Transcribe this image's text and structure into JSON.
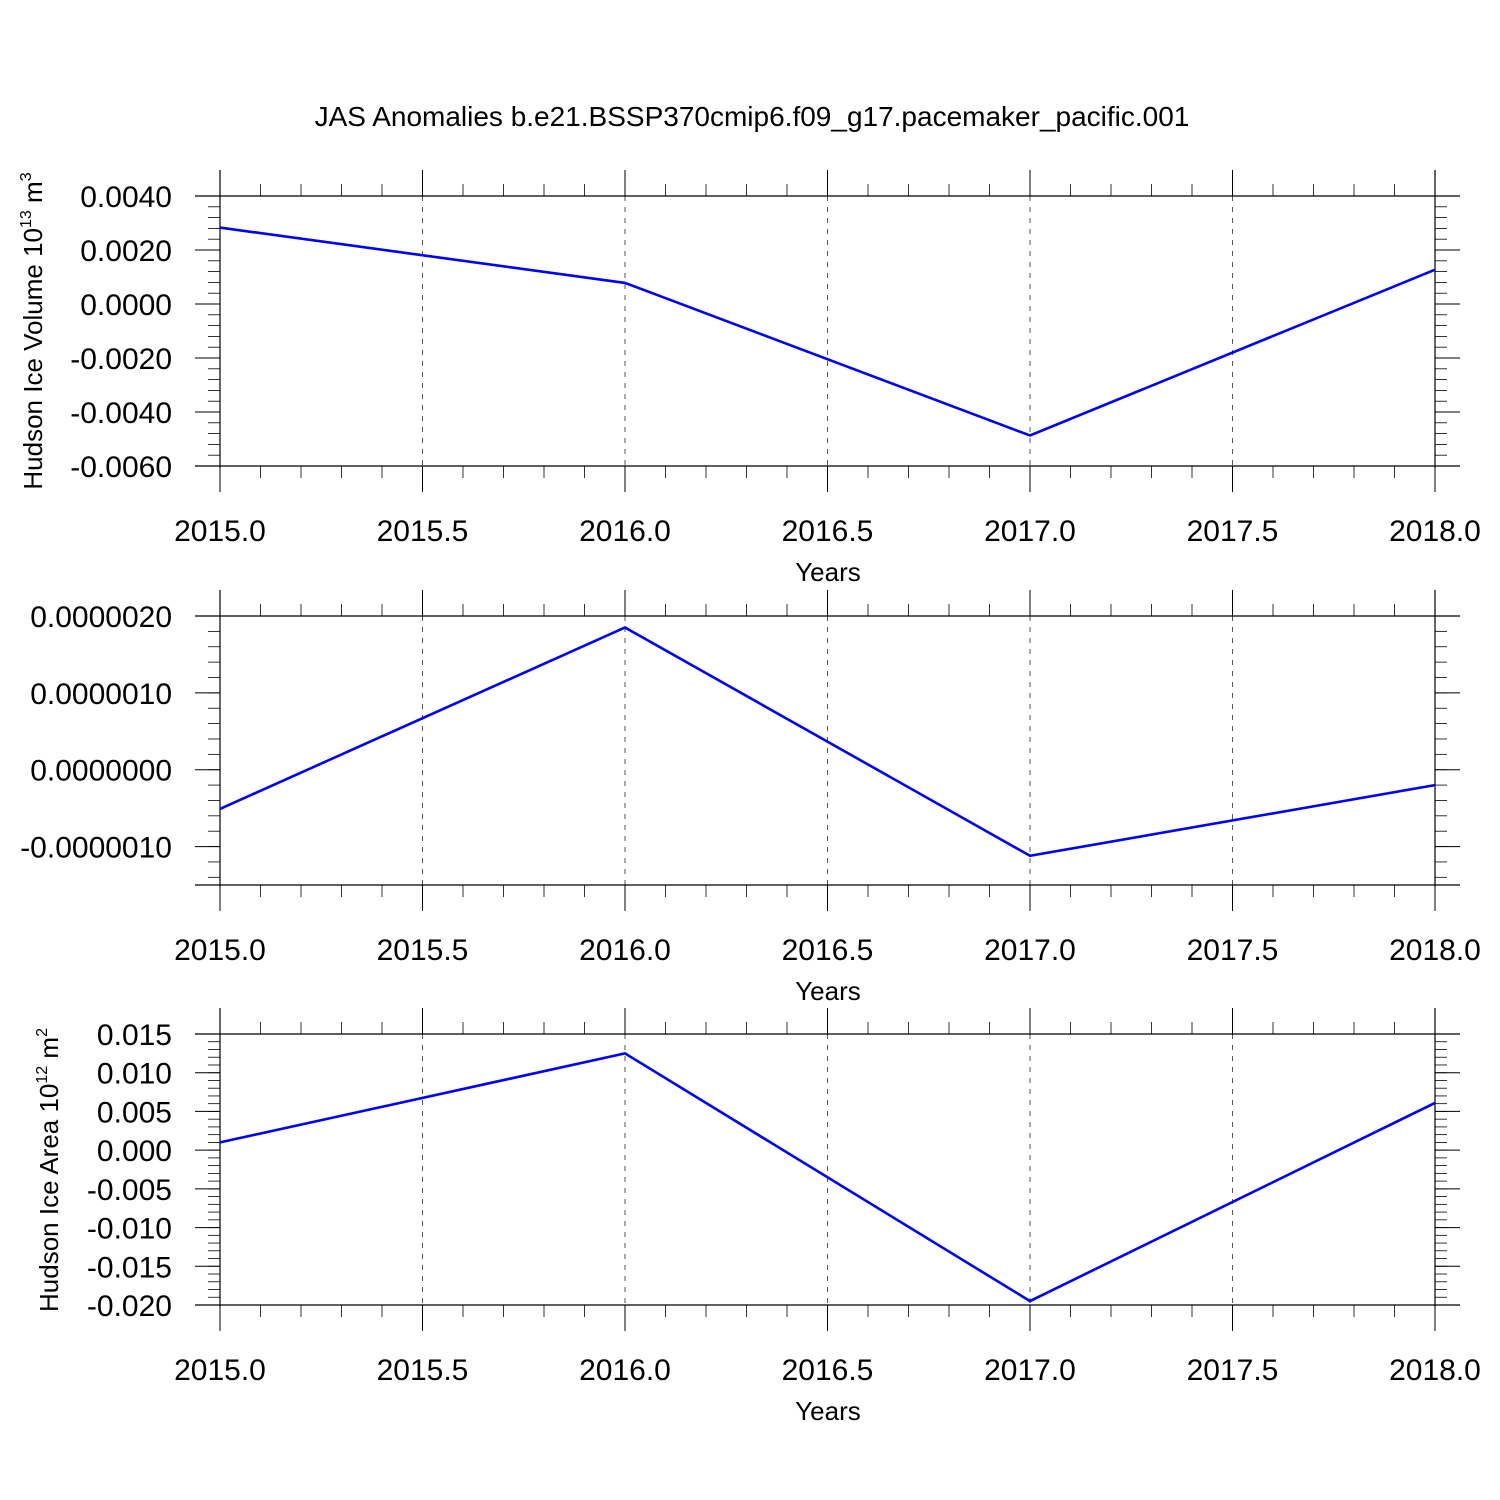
{
  "figure": {
    "title": "JAS Anomalies b.e21.BSSP370cmip6.f09_g17.pacemaker_pacific.001"
  },
  "chart_data": [
    {
      "type": "line",
      "x": [
        2015,
        2016,
        2017,
        2018
      ],
      "series": [
        {
          "values": [
            0.00283,
            0.00078,
            -0.00487,
            0.00127
          ],
          "color": "#0000ff"
        }
      ],
      "xlabel": "Years",
      "ylabel": {
        "text": "Hudson Ice Volume 10",
        "sup": "13",
        "unit": " m",
        "unit_sup": "3"
      },
      "xlim": [
        2015,
        2018
      ],
      "ylim": [
        -0.006,
        0.004
      ],
      "xticks": [
        2015.0,
        2015.5,
        2016.0,
        2016.5,
        2017.0,
        2017.5,
        2018.0
      ],
      "xtick_labels": [
        "2015.0",
        "2015.5",
        "2016.0",
        "2016.5",
        "2017.0",
        "2017.5",
        "2018.0"
      ],
      "yticks": [
        0.004,
        0.002,
        0.0,
        -0.002,
        -0.004,
        -0.006
      ],
      "ytick_labels": [
        "0.0040",
        "0.0020",
        "0.0000",
        "-0.0020",
        "-0.0040",
        "-0.0060"
      ],
      "grid": "vertical dashed at major x ticks"
    },
    {
      "type": "line",
      "x": [
        2015,
        2016,
        2017,
        2018
      ],
      "series": [
        {
          "values": [
            -5.1e-07,
            1.85e-06,
            -1.12e-06,
            -2e-07
          ],
          "color": "#0000ff"
        }
      ],
      "xlabel": "Years",
      "ylabel": null,
      "xlim": [
        2015,
        2018
      ],
      "ylim": [
        -1.5e-06,
        2e-06
      ],
      "xticks": [
        2015.0,
        2015.5,
        2016.0,
        2016.5,
        2017.0,
        2017.5,
        2018.0
      ],
      "xtick_labels": [
        "2015.0",
        "2015.5",
        "2016.0",
        "2016.5",
        "2017.0",
        "2017.5",
        "2018.0"
      ],
      "yticks": [
        2e-06,
        1e-06,
        0.0,
        -1e-06
      ],
      "ytick_labels": [
        "0.0000020",
        "0.0000010",
        "0.0000000",
        "-0.0000010"
      ],
      "grid": "vertical dashed at major x ticks"
    },
    {
      "type": "line",
      "x": [
        2015,
        2016,
        2017,
        2018
      ],
      "series": [
        {
          "values": [
            0.001,
            0.0125,
            -0.0195,
            0.0061
          ],
          "color": "#0000ff"
        }
      ],
      "xlabel": "Years",
      "ylabel": {
        "text": "Hudson Ice Area 10",
        "sup": "12",
        "unit": " m",
        "unit_sup": "2"
      },
      "xlim": [
        2015,
        2018
      ],
      "ylim": [
        -0.02,
        0.015
      ],
      "xticks": [
        2015.0,
        2015.5,
        2016.0,
        2016.5,
        2017.0,
        2017.5,
        2018.0
      ],
      "xtick_labels": [
        "2015.0",
        "2015.5",
        "2016.0",
        "2016.5",
        "2017.0",
        "2017.5",
        "2018.0"
      ],
      "yticks": [
        0.015,
        0.01,
        0.005,
        0.0,
        -0.005,
        -0.01,
        -0.015,
        -0.02
      ],
      "ytick_labels": [
        "0.015",
        "0.010",
        "0.005",
        "0.000",
        "-0.005",
        "-0.010",
        "-0.015",
        "-0.020"
      ],
      "grid": "vertical dashed at major x ticks"
    }
  ]
}
